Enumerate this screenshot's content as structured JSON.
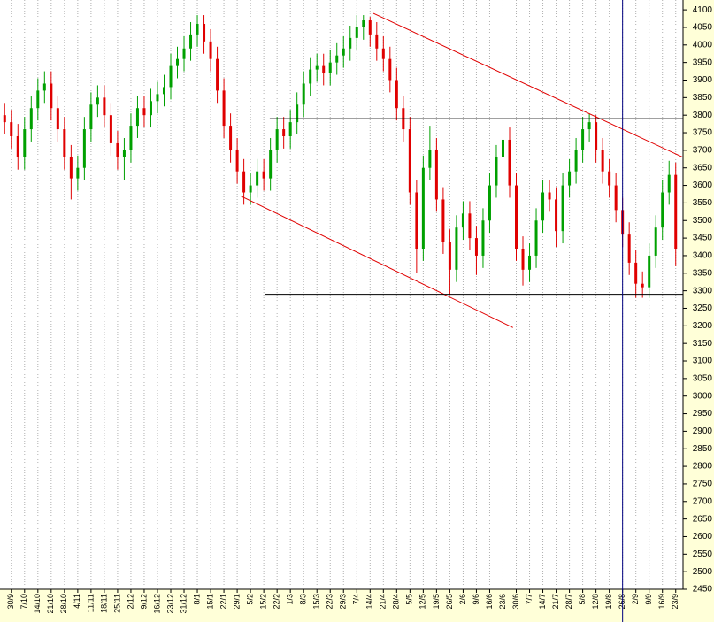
{
  "chart_data": {
    "type": "candlestick",
    "up_color": "#00a000",
    "down_color": "#e00000",
    "x": [
      -1,
      0,
      1,
      2,
      3,
      4,
      5,
      6,
      7,
      8,
      9,
      10,
      11,
      12,
      13,
      14,
      15,
      16,
      17,
      18,
      19,
      20,
      21,
      22,
      23,
      24,
      25,
      26,
      27,
      28,
      29,
      30,
      31,
      32,
      33,
      34,
      35,
      36,
      37,
      38,
      39,
      40,
      41,
      42,
      43,
      44,
      45,
      46,
      47,
      48,
      49,
      50,
      51,
      52,
      53,
      54,
      55,
      56,
      57,
      58,
      59,
      60,
      61,
      62,
      63,
      64,
      65,
      66,
      67,
      68,
      69,
      70,
      71,
      72,
      73,
      74,
      75,
      76,
      77,
      78,
      79,
      80,
      81,
      82,
      83,
      84,
      85,
      86,
      87,
      88,
      89,
      90,
      91,
      92,
      93,
      94,
      95,
      96,
      97,
      98,
      99,
      100
    ],
    "open": [
      3800,
      3780,
      3740,
      3680,
      3760,
      3820,
      3870,
      3890,
      3820,
      3760,
      3680,
      3620,
      3650,
      3760,
      3830,
      3850,
      3800,
      3720,
      3680,
      3700,
      3770,
      3820,
      3800,
      3840,
      3860,
      3880,
      3940,
      3960,
      3990,
      4030,
      4060,
      4010,
      3960,
      3870,
      3770,
      3700,
      3640,
      3580,
      3600,
      3640,
      3620,
      3700,
      3760,
      3740,
      3780,
      3830,
      3890,
      3930,
      3940,
      3920,
      3950,
      3970,
      3990,
      4020,
      4050,
      4070,
      4030,
      3990,
      3960,
      3900,
      3820,
      3760,
      3580,
      3420,
      3650,
      3700,
      3560,
      3440,
      3360,
      3480,
      3520,
      3450,
      3400,
      3500,
      3600,
      3680,
      3730,
      3600,
      3420,
      3360,
      3400,
      3500,
      3580,
      3560,
      3470,
      3600,
      3640,
      3700,
      3760,
      3780,
      3700,
      3640,
      3600,
      3530,
      3460,
      3380,
      3320,
      3310,
      3400,
      3480,
      3580,
      3630
    ],
    "high": [
      3835,
      3815,
      3775,
      3795,
      3855,
      3905,
      3925,
      3925,
      3855,
      3795,
      3715,
      3685,
      3795,
      3865,
      3885,
      3885,
      3835,
      3755,
      3735,
      3805,
      3855,
      3855,
      3875,
      3895,
      3915,
      3975,
      3995,
      4025,
      4065,
      4085,
      4085,
      4045,
      3995,
      3905,
      3805,
      3735,
      3675,
      3635,
      3675,
      3675,
      3735,
      3795,
      3795,
      3815,
      3865,
      3925,
      3965,
      3975,
      3975,
      3985,
      4005,
      4025,
      4055,
      4085,
      4085,
      4080,
      4065,
      4025,
      3995,
      3935,
      3855,
      3795,
      3615,
      3685,
      3770,
      3735,
      3595,
      3475,
      3515,
      3555,
      3555,
      3485,
      3535,
      3635,
      3715,
      3765,
      3765,
      3635,
      3455,
      3435,
      3535,
      3615,
      3615,
      3595,
      3635,
      3675,
      3735,
      3795,
      3805,
      3800,
      3735,
      3675,
      3635,
      3565,
      3495,
      3415,
      3355,
      3435,
      3515,
      3615,
      3670,
      3665
    ],
    "low": [
      3745,
      3705,
      3645,
      3645,
      3725,
      3785,
      3835,
      3785,
      3725,
      3645,
      3560,
      3585,
      3615,
      3725,
      3795,
      3765,
      3685,
      3645,
      3615,
      3665,
      3735,
      3765,
      3765,
      3805,
      3825,
      3845,
      3905,
      3925,
      3955,
      3995,
      3975,
      3925,
      3835,
      3735,
      3665,
      3605,
      3545,
      3545,
      3565,
      3585,
      3585,
      3665,
      3705,
      3705,
      3745,
      3795,
      3855,
      3895,
      3885,
      3885,
      3915,
      3935,
      3955,
      3985,
      4015,
      3995,
      3955,
      3925,
      3865,
      3785,
      3725,
      3545,
      3350,
      3385,
      3615,
      3525,
      3405,
      3290,
      3325,
      3445,
      3415,
      3345,
      3365,
      3465,
      3565,
      3645,
      3565,
      3385,
      3315,
      3325,
      3365,
      3465,
      3525,
      3425,
      3435,
      3565,
      3605,
      3665,
      3725,
      3665,
      3605,
      3565,
      3495,
      3425,
      3345,
      3280,
      3280,
      3280,
      3365,
      3445,
      3545,
      3370
    ],
    "close": [
      3780,
      3740,
      3680,
      3760,
      3820,
      3870,
      3890,
      3820,
      3760,
      3680,
      3620,
      3650,
      3760,
      3830,
      3850,
      3800,
      3720,
      3680,
      3700,
      3770,
      3820,
      3800,
      3840,
      3860,
      3880,
      3940,
      3960,
      3990,
      4030,
      4060,
      4010,
      3960,
      3870,
      3770,
      3700,
      3640,
      3580,
      3600,
      3640,
      3620,
      3700,
      3760,
      3740,
      3780,
      3830,
      3890,
      3930,
      3940,
      3920,
      3950,
      3970,
      3990,
      4020,
      4050,
      4070,
      4030,
      3990,
      3960,
      3900,
      3820,
      3760,
      3580,
      3420,
      3650,
      3700,
      3560,
      3440,
      3360,
      3480,
      3520,
      3450,
      3400,
      3500,
      3600,
      3680,
      3730,
      3600,
      3420,
      3360,
      3400,
      3500,
      3580,
      3560,
      3470,
      3600,
      3640,
      3700,
      3760,
      3780,
      3700,
      3640,
      3600,
      3530,
      3460,
      3380,
      3320,
      3310,
      3400,
      3480,
      3580,
      3630,
      3420
    ],
    "lines": [
      {
        "color": "#e00000",
        "x": [
          54.5,
          101.1
        ],
        "y": [
          4090,
          3680
        ]
      },
      {
        "color": "#e00000",
        "x": [
          34.5,
          75.5
        ],
        "y": [
          3570,
          3195
        ]
      },
      {
        "color": "#000000",
        "x": [
          38.9,
          101.1
        ],
        "y": [
          3790,
          3790
        ]
      },
      {
        "color": "#000000",
        "x": [
          38.2,
          101.1
        ],
        "y": [
          3290,
          3290
        ]
      }
    ],
    "vline": {
      "color": "#000080",
      "x": 92
    },
    "xlim": [
      -1.7,
      101.1
    ],
    "ylim": [
      2450,
      4128
    ],
    "grid": true,
    "xticks": [
      {
        "value": 0,
        "label": "30/9"
      },
      {
        "value": 2,
        "label": "7/10"
      },
      {
        "value": 4,
        "label": "14/10"
      },
      {
        "value": 6,
        "label": "21/10"
      },
      {
        "value": 8,
        "label": "28/10"
      },
      {
        "value": 10,
        "label": "4/11"
      },
      {
        "value": 12,
        "label": "11/11"
      },
      {
        "value": 14,
        "label": "18/11"
      },
      {
        "value": 16,
        "label": "25/11"
      },
      {
        "value": 18,
        "label": "2/12"
      },
      {
        "value": 20,
        "label": "9/12"
      },
      {
        "value": 22,
        "label": "16/12"
      },
      {
        "value": 24,
        "label": "23/12"
      },
      {
        "value": 26,
        "label": "31/12"
      },
      {
        "value": 28,
        "label": "8/1"
      },
      {
        "value": 30,
        "label": "15/1"
      },
      {
        "value": 32,
        "label": "22/1"
      },
      {
        "value": 34,
        "label": "29/1"
      },
      {
        "value": 36,
        "label": "5/2"
      },
      {
        "value": 38,
        "label": "15/2"
      },
      {
        "value": 40,
        "label": "22/2"
      },
      {
        "value": 42,
        "label": "1/3"
      },
      {
        "value": 44,
        "label": "8/3"
      },
      {
        "value": 46,
        "label": "15/3"
      },
      {
        "value": 48,
        "label": "22/3"
      },
      {
        "value": 50,
        "label": "29/3"
      },
      {
        "value": 52,
        "label": "7/4"
      },
      {
        "value": 54,
        "label": "14/4"
      },
      {
        "value": 56,
        "label": "21/4"
      },
      {
        "value": 58,
        "label": "28/4"
      },
      {
        "value": 60,
        "label": "5/5"
      },
      {
        "value": 62,
        "label": "12/5"
      },
      {
        "value": 64,
        "label": "19/5"
      },
      {
        "value": 66,
        "label": "26/5"
      },
      {
        "value": 68,
        "label": "2/6"
      },
      {
        "value": 70,
        "label": "9/6"
      },
      {
        "value": 72,
        "label": "16/6"
      },
      {
        "value": 74,
        "label": "23/6"
      },
      {
        "value": 76,
        "label": "30/6"
      },
      {
        "value": 78,
        "label": "7/7"
      },
      {
        "value": 80,
        "label": "14/7"
      },
      {
        "value": 82,
        "label": "21/7"
      },
      {
        "value": 84,
        "label": "28/7"
      },
      {
        "value": 86,
        "label": "5/8"
      },
      {
        "value": 88,
        "label": "12/8"
      },
      {
        "value": 90,
        "label": "19/8"
      },
      {
        "value": 92,
        "label": "26/8"
      },
      {
        "value": 94,
        "label": "2/9"
      },
      {
        "value": 96,
        "label": "9/9"
      },
      {
        "value": 98,
        "label": "16/9"
      },
      {
        "value": 100,
        "label": "23/9"
      }
    ],
    "yticks": [
      2450,
      2500,
      2550,
      2600,
      2650,
      2700,
      2750,
      2800,
      2850,
      2900,
      2950,
      3000,
      3050,
      3100,
      3150,
      3200,
      3250,
      3300,
      3350,
      3400,
      3450,
      3500,
      3550,
      3600,
      3650,
      3700,
      3750,
      3800,
      3850,
      3900,
      3950,
      4000,
      4050,
      4100
    ]
  }
}
